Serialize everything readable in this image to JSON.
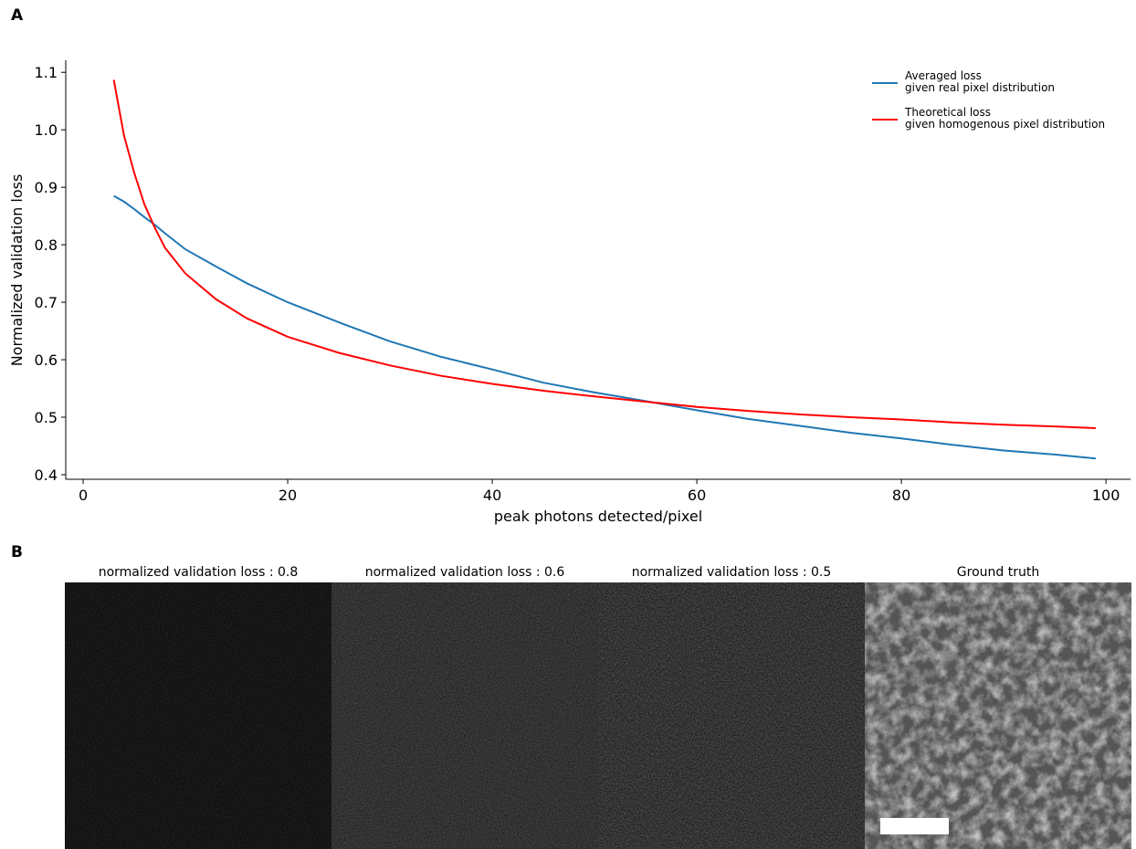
{
  "chart_data": {
    "type": "line",
    "panel_label": "A",
    "xlabel": "peak photons detected/pixel",
    "ylabel": "Normalized validation loss",
    "x": [
      3,
      4,
      5,
      6,
      7,
      8,
      10,
      13,
      16,
      20,
      25,
      30,
      35,
      40,
      45,
      50,
      55,
      60,
      65,
      70,
      75,
      80,
      85,
      90,
      95,
      99
    ],
    "series": [
      {
        "name": "Averaged loss\ngiven real pixel distribution",
        "color": "#1f77b4",
        "values": [
          0.885,
          0.875,
          0.862,
          0.848,
          0.835,
          0.82,
          0.792,
          0.762,
          0.733,
          0.7,
          0.665,
          0.632,
          0.605,
          0.583,
          0.56,
          0.543,
          0.528,
          0.512,
          0.497,
          0.485,
          0.473,
          0.463,
          0.452,
          0.442,
          0.435,
          0.428
        ]
      },
      {
        "name": "Theoretical loss\ngiven homogenous pixel distribution",
        "color": "#ff0000",
        "values": [
          1.087,
          0.99,
          0.925,
          0.87,
          0.83,
          0.795,
          0.75,
          0.705,
          0.672,
          0.64,
          0.612,
          0.59,
          0.572,
          0.558,
          0.546,
          0.536,
          0.527,
          0.518,
          0.511,
          0.505,
          0.5,
          0.496,
          0.491,
          0.487,
          0.484,
          0.481
        ]
      }
    ],
    "xlim": [
      -1.7,
      102.4
    ],
    "ylim": [
      0.392,
      1.121
    ],
    "xticks": [
      0,
      20,
      40,
      60,
      80,
      100
    ],
    "yticks": [
      0.4,
      0.5,
      0.6,
      0.7,
      0.8,
      0.9,
      {
        "value": 1,
        "label": "1.0"
      },
      1.1
    ],
    "legend": "upper right",
    "grid": false
  },
  "images": {
    "panel_label": "B",
    "titles": [
      "normalized validation loss : 0.8",
      "normalized validation loss : 0.6",
      "normalized validation loss : 0.5",
      "Ground truth"
    ]
  }
}
